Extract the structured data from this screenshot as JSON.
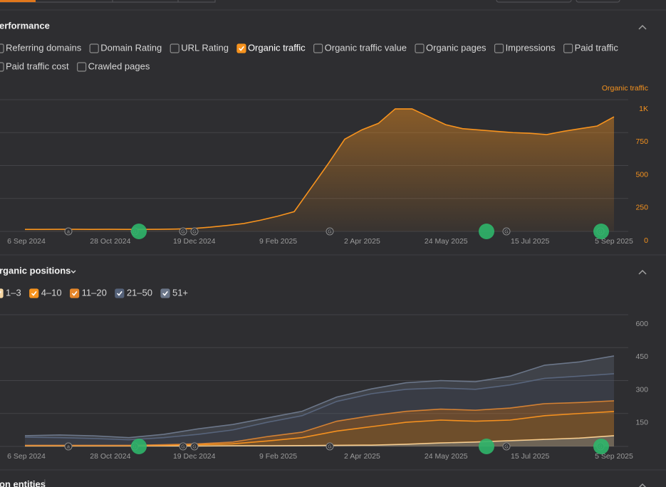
{
  "performance": {
    "title": "erformance",
    "metrics": [
      {
        "label": "Referring domains",
        "checked": false
      },
      {
        "label": "Domain Rating",
        "checked": false
      },
      {
        "label": "URL Rating",
        "checked": false
      },
      {
        "label": "Organic traffic",
        "checked": true
      },
      {
        "label": "Organic traffic value",
        "checked": false
      },
      {
        "label": "Organic pages",
        "checked": false
      },
      {
        "label": "Impressions",
        "checked": false
      },
      {
        "label": "Paid traffic",
        "checked": false
      },
      {
        "label": "Paid traffic cost",
        "checked": false
      },
      {
        "label": "Crawled pages",
        "checked": false
      }
    ]
  },
  "positions": {
    "title": "rganic positions"
  },
  "entities": {
    "title": "on entities",
    "info": "i"
  },
  "chart_data": [
    {
      "type": "area",
      "legend": "Organic traffic",
      "series": [
        {
          "name": "Organic traffic",
          "color": "#f7931e",
          "values": [
            15,
            15,
            16,
            16,
            15,
            16,
            15,
            15,
            16,
            18,
            22,
            32,
            45,
            60,
            85,
            115,
            150,
            330,
            510,
            700,
            770,
            820,
            930,
            930,
            870,
            810,
            780,
            770,
            760,
            750,
            745,
            735,
            760,
            780,
            800,
            870
          ]
        }
      ],
      "ylim": [
        0,
        1000
      ],
      "yticks": [
        0,
        250,
        500,
        750,
        {
          "value": 1000,
          "label": "1K"
        }
      ],
      "xlabels": [
        "6 Sep 2024",
        "28 Oct 2024",
        "19 Dec 2024",
        "9 Feb 2025",
        "2 Apr 2025",
        "24 May 2025",
        "15 Jul 2025",
        "5 Sep 2025"
      ],
      "markers": [
        "a",
        "G",
        "G",
        "G",
        "G",
        "G",
        "G"
      ]
    },
    {
      "type": "stacked_area",
      "series": [
        {
          "name": "1–3",
          "color": "#f6d7a4",
          "checked": true,
          "values": [
            2,
            2,
            2,
            2,
            2,
            2,
            3,
            3,
            4,
            5,
            6,
            10,
            16,
            20,
            26,
            32,
            38,
            49
          ]
        },
        {
          "name": "4–10",
          "color": "#f7931e",
          "checked": true,
          "values": [
            2,
            2,
            2,
            2,
            3,
            6,
            9,
            22,
            36,
            65,
            84,
            100,
            104,
            95,
            94,
            108,
            112,
            110
          ]
        },
        {
          "name": "11–20",
          "color": "#e5862a",
          "checked": true,
          "values": [
            1,
            1,
            1,
            1,
            3,
            4,
            8,
            20,
            25,
            45,
            50,
            50,
            50,
            50,
            55,
            55,
            50,
            49
          ]
        },
        {
          "name": "21–50",
          "color": "#55627a",
          "checked": true,
          "values": [
            37,
            35,
            31,
            25,
            32,
            43,
            55,
            65,
            75,
            90,
            100,
            100,
            96,
            95,
            105,
            115,
            120,
            123
          ]
        },
        {
          "name": "51+",
          "color": "#6b7689",
          "checked": true,
          "values": [
            7,
            12,
            12,
            10,
            15,
            25,
            25,
            20,
            20,
            20,
            22,
            30,
            34,
            35,
            40,
            60,
            65,
            81
          ]
        }
      ],
      "ylim": [
        0,
        600
      ],
      "yticks": [
        150,
        300,
        450,
        600
      ],
      "xlabels": [
        "6 Sep 2024",
        "28 Oct 2024",
        "19 Dec 2024",
        "9 Feb 2025",
        "2 Apr 2025",
        "24 May 2025",
        "15 Jul 2025",
        "5 Sep 2025"
      ],
      "markers": [
        "a",
        "G",
        "G",
        "G",
        "G",
        "G",
        "G"
      ]
    }
  ]
}
